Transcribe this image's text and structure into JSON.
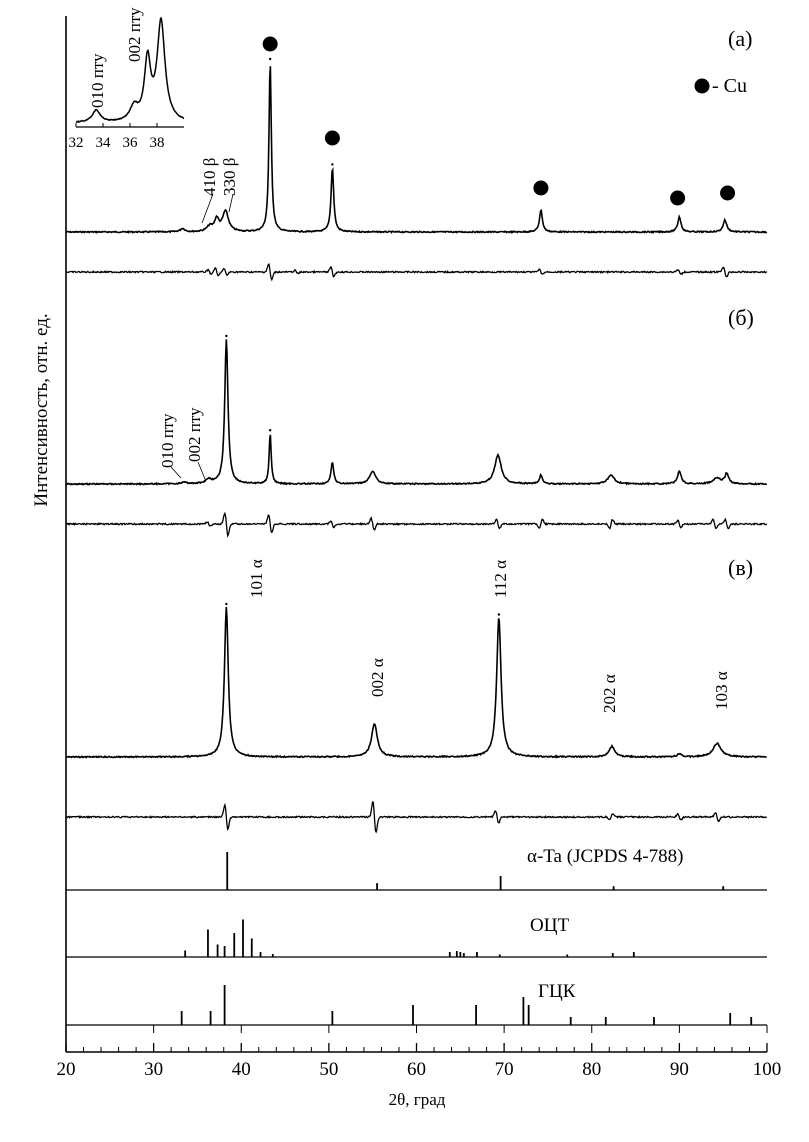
{
  "chart_data": {
    "type": "line",
    "xlabel": "2θ, град",
    "ylabel": "Интенсивность, отн. ед.",
    "xlim": [
      20,
      100
    ],
    "x_ticks": [
      20,
      30,
      40,
      50,
      60,
      70,
      80,
      90,
      100
    ],
    "panels": [
      {
        "id": "a",
        "label": "(а)",
        "legend": "- Cu",
        "peaks": [
          {
            "x": 33.3,
            "h": 0.02,
            "w": 0.3
          },
          {
            "x": 36.4,
            "h": 0.03,
            "w": 0.4
          },
          {
            "x": 37.2,
            "h": 0.07,
            "w": 0.3
          },
          {
            "x": 38.2,
            "h": 0.12,
            "w": 0.4
          },
          {
            "x": 43.3,
            "h": 1.0,
            "w": 0.16
          },
          {
            "x": 50.4,
            "h": 0.38,
            "w": 0.18
          },
          {
            "x": 74.2,
            "h": 0.13,
            "w": 0.2
          },
          {
            "x": 90.0,
            "h": 0.09,
            "w": 0.22
          },
          {
            "x": 95.2,
            "h": 0.07,
            "w": 0.25
          }
        ],
        "cu_markers": [
          43.3,
          50.4,
          74.2,
          89.8,
          95.5
        ],
        "annotations": [
          {
            "text": "410 β",
            "x": 37.0
          },
          {
            "text": "330 β",
            "x": 38.3
          }
        ],
        "inset": {
          "x_ticks": [
            32,
            34,
            36,
            38
          ],
          "xlim": [
            32,
            40
          ],
          "peaks": [
            {
              "x": 33.5,
              "h": 0.12,
              "w": 0.35
            },
            {
              "x": 36.3,
              "h": 0.14,
              "w": 0.35
            },
            {
              "x": 37.3,
              "h": 0.6,
              "w": 0.28
            },
            {
              "x": 38.3,
              "h": 1.0,
              "w": 0.35
            }
          ],
          "annotations": [
            {
              "text": "010 пту",
              "x": 33.6
            },
            {
              "text": "002 пту",
              "x": 36.2
            }
          ]
        },
        "diff": [
          {
            "x": 36.4,
            "a": 0.3
          },
          {
            "x": 37.2,
            "a": 0.5
          },
          {
            "x": 38.2,
            "a": 0.4
          },
          {
            "x": 43.3,
            "a": 1.0
          },
          {
            "x": 46.3,
            "a": 0.2
          },
          {
            "x": 50.4,
            "a": 0.6
          },
          {
            "x": 74.2,
            "a": 0.3
          },
          {
            "x": 90.0,
            "a": 0.3
          },
          {
            "x": 95.2,
            "a": 0.7
          }
        ]
      },
      {
        "id": "b",
        "label": "(б)",
        "peaks": [
          {
            "x": 33.5,
            "h": 0.01,
            "w": 0.4
          },
          {
            "x": 36.3,
            "h": 0.03,
            "w": 0.4
          },
          {
            "x": 38.3,
            "h": 1.0,
            "w": 0.22
          },
          {
            "x": 43.3,
            "h": 0.35,
            "w": 0.14
          },
          {
            "x": 50.4,
            "h": 0.15,
            "w": 0.18
          },
          {
            "x": 55.0,
            "h": 0.09,
            "w": 0.4
          },
          {
            "x": 69.3,
            "h": 0.2,
            "w": 0.45
          },
          {
            "x": 74.2,
            "h": 0.06,
            "w": 0.2
          },
          {
            "x": 82.2,
            "h": 0.06,
            "w": 0.45
          },
          {
            "x": 90.0,
            "h": 0.09,
            "w": 0.25
          },
          {
            "x": 94.3,
            "h": 0.04,
            "w": 0.5
          },
          {
            "x": 95.4,
            "h": 0.07,
            "w": 0.25
          }
        ],
        "annotations": [
          {
            "text": "010 пту",
            "x": 33.6
          },
          {
            "text": "002 пту",
            "x": 36.3
          }
        ],
        "diff": [
          {
            "x": 36.3,
            "a": 0.2
          },
          {
            "x": 38.3,
            "a": 1.0
          },
          {
            "x": 43.3,
            "a": 0.8
          },
          {
            "x": 50.4,
            "a": 0.3
          },
          {
            "x": 55.0,
            "a": 0.5
          },
          {
            "x": 69.3,
            "a": 0.4
          },
          {
            "x": 74.2,
            "a": -0.4
          },
          {
            "x": 82.2,
            "a": -0.4
          },
          {
            "x": 90.0,
            "a": 0.3
          },
          {
            "x": 94.0,
            "a": 0.4
          },
          {
            "x": 95.4,
            "a": 0.4
          }
        ]
      },
      {
        "id": "c",
        "label": "(в)",
        "peaks": [
          {
            "x": 38.3,
            "h": 1.0,
            "w": 0.26
          },
          {
            "x": 55.2,
            "h": 0.22,
            "w": 0.4
          },
          {
            "x": 69.4,
            "h": 0.93,
            "w": 0.3
          },
          {
            "x": 82.3,
            "h": 0.07,
            "w": 0.38
          },
          {
            "x": 90.0,
            "h": 0.02,
            "w": 0.3
          },
          {
            "x": 94.3,
            "h": 0.09,
            "w": 0.55
          }
        ],
        "annotations": [
          {
            "text": "101 α",
            "x": 38.6
          },
          {
            "text": "002 α",
            "x": 55.4
          },
          {
            "text": "112 α",
            "x": 69.6
          },
          {
            "text": "202 α",
            "x": 82.4
          },
          {
            "text": "103 α",
            "x": 94.6
          }
        ],
        "diff": [
          {
            "x": 38.3,
            "a": 0.8
          },
          {
            "x": 55.2,
            "a": 1.0
          },
          {
            "x": 69.2,
            "a": 0.4
          },
          {
            "x": 82.2,
            "a": -0.2
          },
          {
            "x": 90.0,
            "a": 0.2
          },
          {
            "x": 94.3,
            "a": 0.3
          }
        ]
      }
    ],
    "references": [
      {
        "label": "α-Ta (JCPDS 4-788)",
        "lines": [
          {
            "x": 38.4,
            "h": 1.0
          },
          {
            "x": 55.5,
            "h": 0.18
          },
          {
            "x": 69.6,
            "h": 0.37
          },
          {
            "x": 82.5,
            "h": 0.1
          },
          {
            "x": 95.0,
            "h": 0.1
          }
        ]
      },
      {
        "label": "ОЦТ",
        "lines": [
          {
            "x": 33.6,
            "h": 0.13
          },
          {
            "x": 36.2,
            "h": 0.55
          },
          {
            "x": 37.3,
            "h": 0.25
          },
          {
            "x": 38.1,
            "h": 0.22
          },
          {
            "x": 39.2,
            "h": 0.48
          },
          {
            "x": 40.2,
            "h": 0.75
          },
          {
            "x": 41.2,
            "h": 0.37
          },
          {
            "x": 42.2,
            "h": 0.1
          },
          {
            "x": 43.6,
            "h": 0.06
          },
          {
            "x": 63.8,
            "h": 0.1
          },
          {
            "x": 64.6,
            "h": 0.12
          },
          {
            "x": 65.0,
            "h": 0.1
          },
          {
            "x": 65.4,
            "h": 0.08
          },
          {
            "x": 66.9,
            "h": 0.1
          },
          {
            "x": 69.5,
            "h": 0.05
          },
          {
            "x": 77.2,
            "h": 0.05
          },
          {
            "x": 82.4,
            "h": 0.08
          },
          {
            "x": 84.8,
            "h": 0.1
          }
        ]
      },
      {
        "label": "ГЦК",
        "lines": [
          {
            "x": 33.2,
            "h": 0.35
          },
          {
            "x": 36.5,
            "h": 0.35
          },
          {
            "x": 38.1,
            "h": 1.0
          },
          {
            "x": 50.4,
            "h": 0.35
          },
          {
            "x": 59.6,
            "h": 0.5
          },
          {
            "x": 66.8,
            "h": 0.5
          },
          {
            "x": 72.2,
            "h": 0.7
          },
          {
            "x": 72.8,
            "h": 0.5
          },
          {
            "x": 77.6,
            "h": 0.2
          },
          {
            "x": 81.6,
            "h": 0.2
          },
          {
            "x": 87.1,
            "h": 0.2
          },
          {
            "x": 95.8,
            "h": 0.3
          },
          {
            "x": 98.2,
            "h": 0.2
          }
        ]
      }
    ]
  }
}
